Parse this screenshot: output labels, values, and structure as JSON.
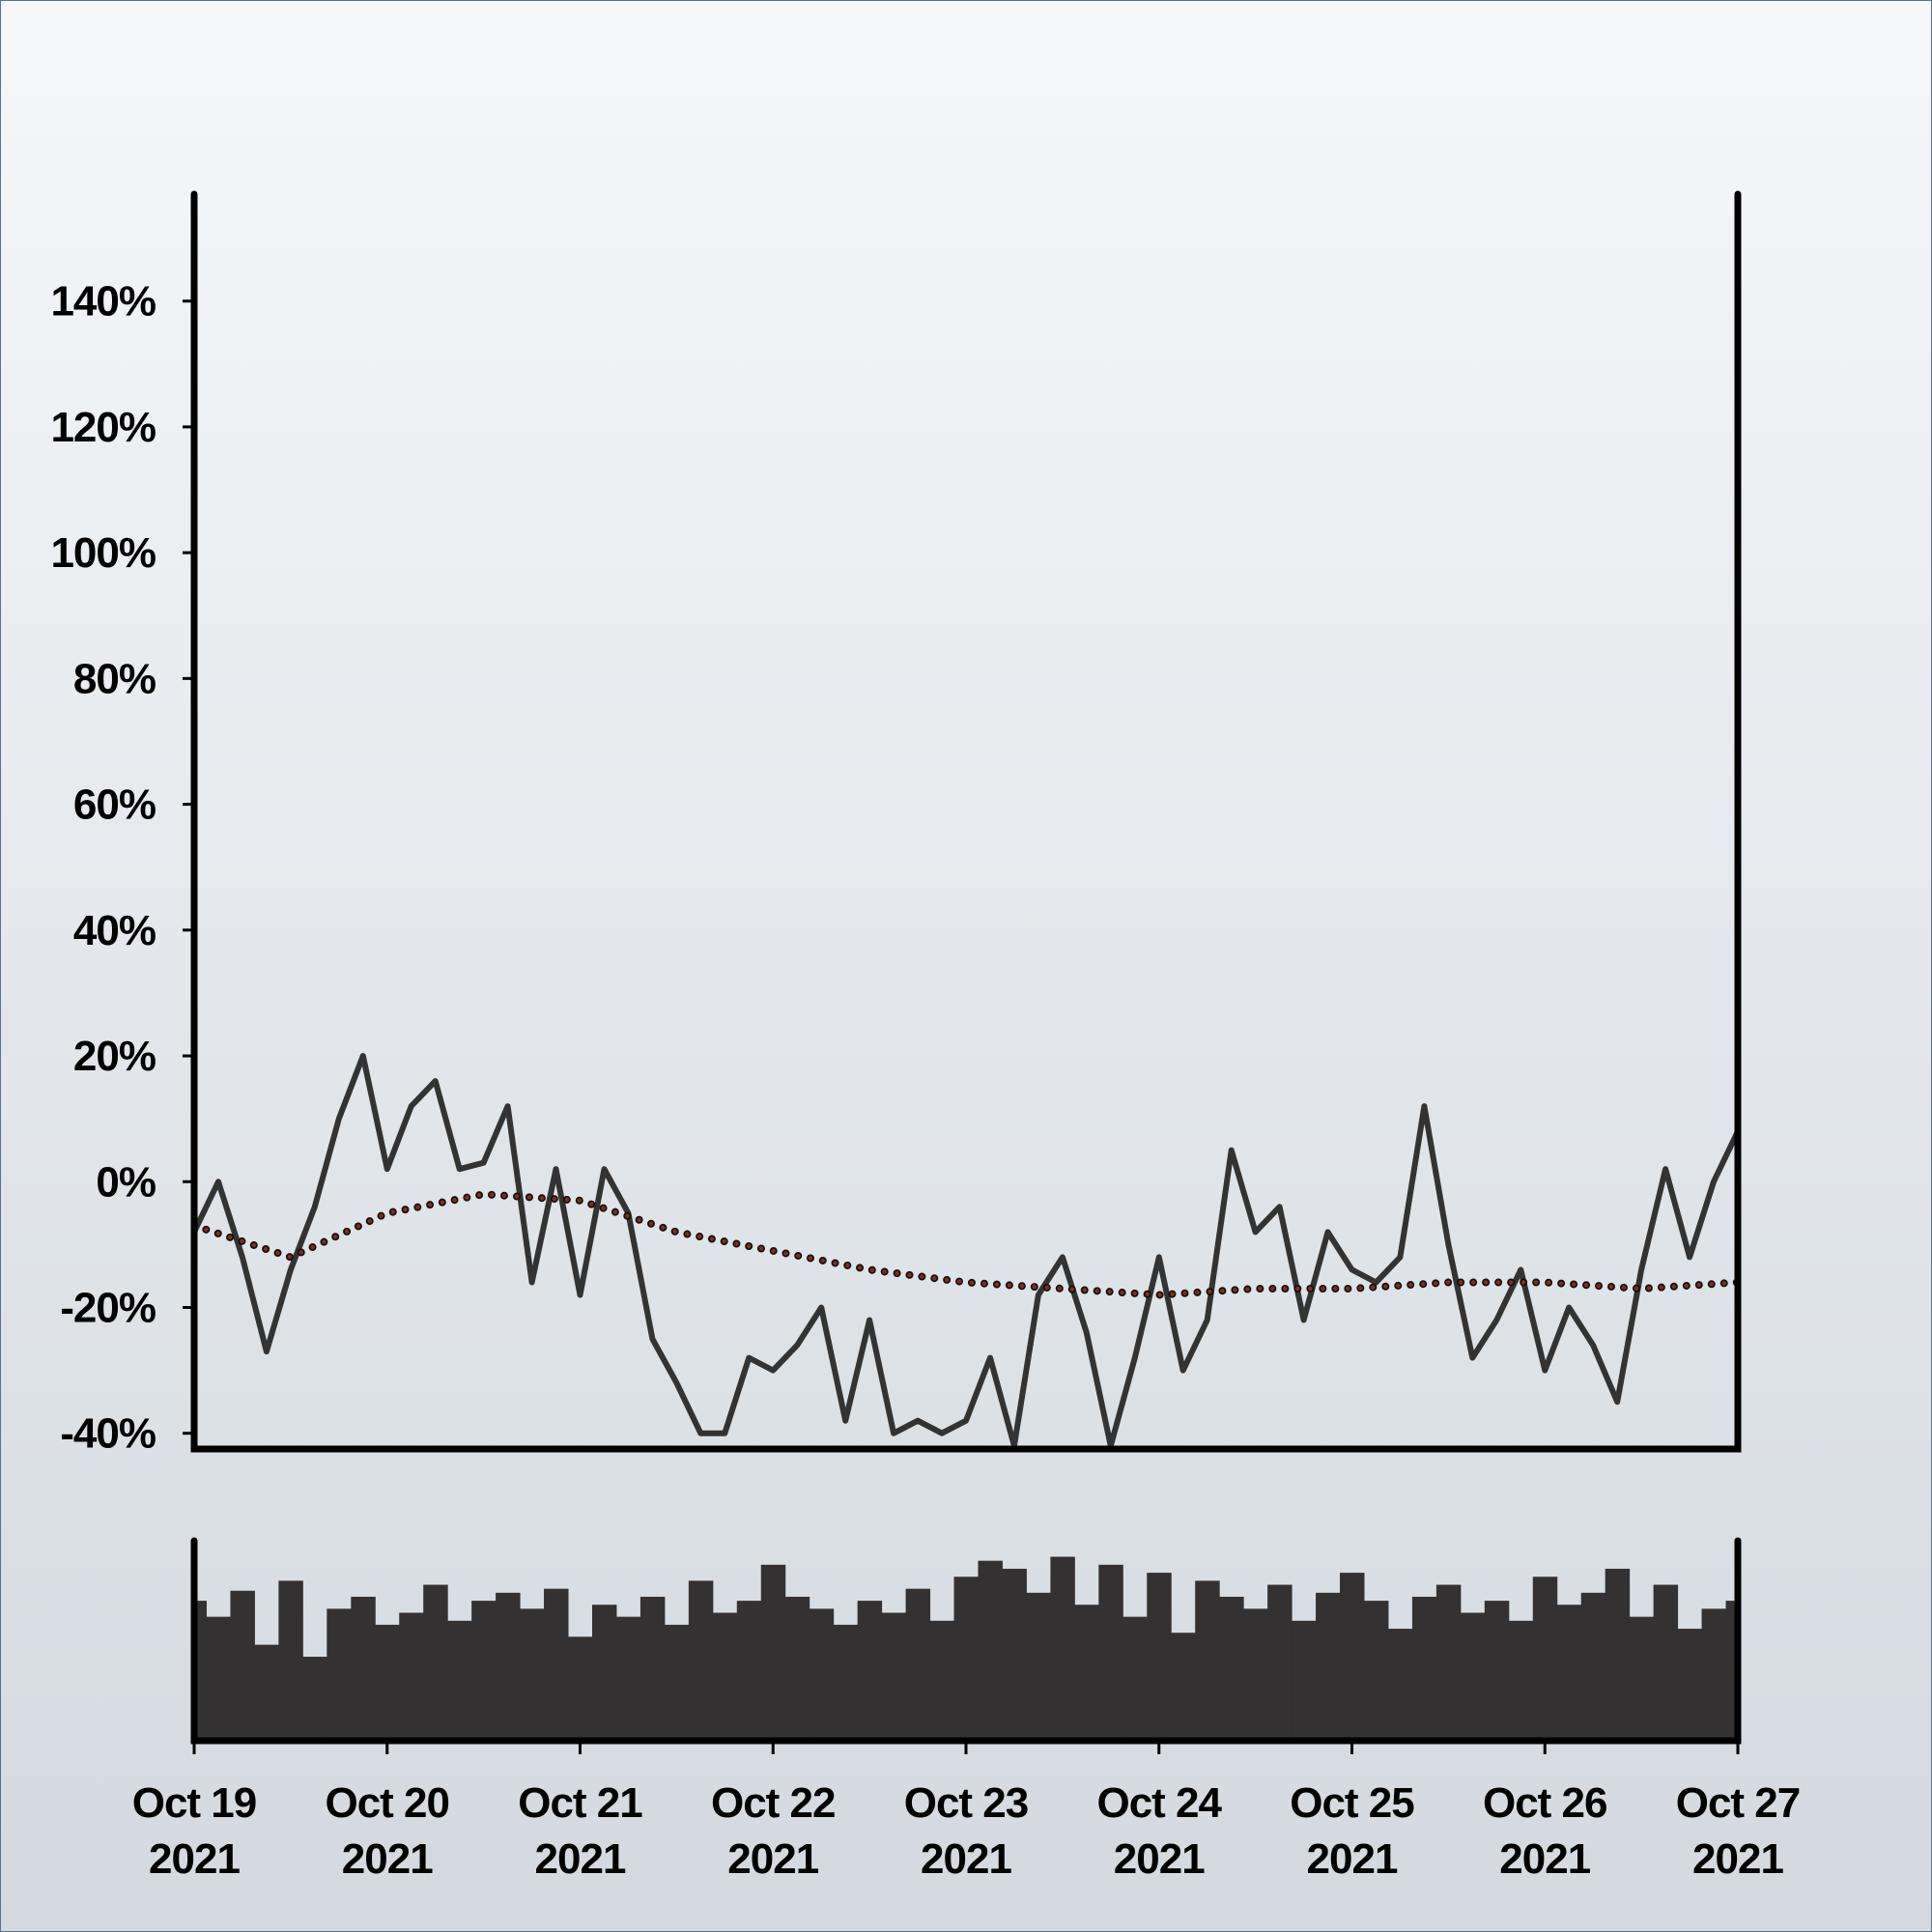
{
  "chart_data": [
    {
      "type": "line",
      "x": [
        0,
        0.125,
        0.25,
        0.375,
        0.5,
        0.625,
        0.75,
        0.875,
        1,
        1.125,
        1.25,
        1.375,
        1.5,
        1.625,
        1.75,
        1.875,
        2,
        2.125,
        2.25,
        2.375,
        2.5,
        2.625,
        2.75,
        2.875,
        3,
        3.125,
        3.25,
        3.375,
        3.5,
        3.625,
        3.75,
        3.875,
        4,
        4.125,
        4.25,
        4.375,
        4.5,
        4.625,
        4.75,
        4.875,
        5,
        5.125,
        5.25,
        5.375,
        5.5,
        5.625,
        5.75,
        5.875,
        6,
        6.125,
        6.25,
        6.375,
        6.5,
        6.625,
        6.75,
        6.875,
        7,
        7.125,
        7.25,
        7.375,
        7.5,
        7.625,
        7.75,
        7.875,
        8
      ],
      "series": [
        {
          "color": "#333333",
          "values": [
            -8,
            0,
            -12,
            -27,
            -14,
            -4,
            10,
            20,
            2,
            12,
            16,
            2,
            3,
            12,
            -16,
            2,
            -18,
            2,
            -5,
            -25,
            -32,
            -40,
            -40,
            -28,
            -30,
            -26,
            -20,
            -38,
            -22,
            -40,
            -38,
            -40,
            -38,
            -28,
            -42,
            -18,
            -12,
            -24,
            -42,
            -28,
            -12,
            -30,
            -22,
            5,
            -8,
            -4,
            -22,
            -8,
            -14,
            -16,
            -12,
            12,
            -10,
            -28,
            -22,
            -14,
            -30,
            -20,
            -26,
            -35,
            -14,
            2,
            -12,
            0,
            8
          ]
        },
        {
          "color": "#8b2a1a",
          "style": "dotted",
          "x": [
            0,
            0.5,
            1,
            1.5,
            2,
            2.5,
            3,
            3.5,
            4,
            4.5,
            5,
            5.5,
            6,
            6.5,
            7,
            7.5,
            8
          ],
          "values": [
            -7,
            -12,
            -5,
            -2,
            -3,
            -8,
            -11,
            -14,
            -16,
            -17,
            -18,
            -17,
            -17,
            -16,
            -16,
            -17,
            -16
          ]
        }
      ],
      "xlim": [
        0,
        8
      ],
      "ylim": [
        -42.5,
        157
      ],
      "yticks": [
        {
          "value": -40,
          "label": "-40%"
        },
        {
          "value": -20,
          "label": "-20%"
        },
        {
          "value": 0,
          "label": "0%"
        },
        {
          "value": 20,
          "label": "20%"
        },
        {
          "value": 40,
          "label": "40%"
        },
        {
          "value": 60,
          "label": "60%"
        },
        {
          "value": 80,
          "label": "80%"
        },
        {
          "value": 100,
          "label": "100%"
        },
        {
          "value": 120,
          "label": "120%"
        },
        {
          "value": 140,
          "label": "140%"
        }
      ]
    },
    {
      "type": "bar",
      "color": "#333132",
      "x": [
        0,
        0.125,
        0.25,
        0.375,
        0.5,
        0.625,
        0.75,
        0.875,
        1,
        1.125,
        1.25,
        1.375,
        1.5,
        1.625,
        1.75,
        1.875,
        2,
        2.125,
        2.25,
        2.375,
        2.5,
        2.625,
        2.75,
        2.875,
        3,
        3.125,
        3.25,
        3.375,
        3.5,
        3.625,
        3.75,
        3.875,
        4,
        4.125,
        4.25,
        4.375,
        4.5,
        4.625,
        4.75,
        4.875,
        5,
        5.125,
        5.25,
        5.375,
        5.5,
        5.625,
        5.75,
        5.875,
        6,
        6.125,
        6.25,
        6.375,
        6.5,
        6.625,
        6.75,
        6.875,
        7,
        7.125,
        7.25,
        7.375,
        7.5,
        7.625,
        7.75,
        7.875,
        8
      ],
      "values": [
        70,
        62,
        75,
        48,
        80,
        42,
        66,
        72,
        58,
        64,
        78,
        60,
        70,
        74,
        66,
        76,
        52,
        68,
        62,
        72,
        58,
        80,
        64,
        70,
        88,
        72,
        66,
        58,
        70,
        64,
        76,
        60,
        82,
        90,
        86,
        74,
        92,
        68,
        88,
        62,
        84,
        54,
        80,
        72,
        66,
        78,
        60,
        74,
        84,
        70,
        56,
        72,
        78,
        64,
        70,
        60,
        82,
        68,
        74,
        86,
        62,
        78,
        56,
        66,
        70
      ],
      "xlim": [
        0,
        8
      ],
      "ylim": [
        0,
        100
      ],
      "xticks": [
        {
          "value": 0,
          "label": "Oct 19 2021"
        },
        {
          "value": 1,
          "label": "Oct 20 2021"
        },
        {
          "value": 2,
          "label": "Oct 21 2021"
        },
        {
          "value": 3,
          "label": "Oct 22 2021"
        },
        {
          "value": 4,
          "label": "Oct 23 2021"
        },
        {
          "value": 5,
          "label": "Oct 24 2021"
        },
        {
          "value": 6,
          "label": "Oct 25 2021"
        },
        {
          "value": 7,
          "label": "Oct 26 2021"
        },
        {
          "value": 8,
          "label": "Oct 27 2021"
        }
      ]
    }
  ]
}
